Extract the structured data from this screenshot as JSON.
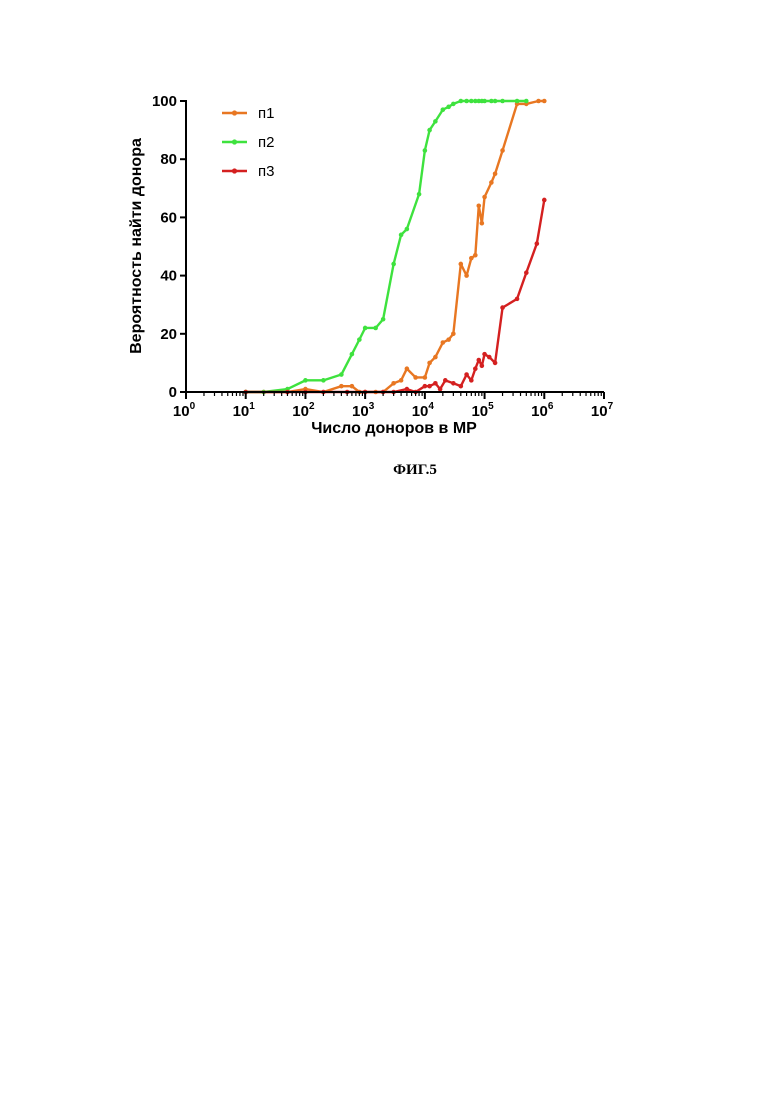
{
  "caption": "ФИГ.5",
  "chart_data": {
    "type": "line",
    "xlabel": "Число доноров в МР",
    "ylabel": "Вероятность найти донора",
    "xscale": "log10",
    "xlim": [
      1,
      10000000
    ],
    "ylim": [
      0,
      100
    ],
    "y_ticks": [
      "0",
      "20",
      "40",
      "60",
      "80",
      "100"
    ],
    "x_ticks": [
      {
        "base": "10",
        "exp": "0"
      },
      {
        "base": "10",
        "exp": "1"
      },
      {
        "base": "10",
        "exp": "2"
      },
      {
        "base": "10",
        "exp": "3"
      },
      {
        "base": "10",
        "exp": "4"
      },
      {
        "base": "10",
        "exp": "5"
      },
      {
        "base": "10",
        "exp": "6"
      },
      {
        "base": "10",
        "exp": "7"
      }
    ],
    "legend_position": "top-left",
    "grid": false,
    "series": [
      {
        "name": "п1",
        "color": "#e87722",
        "points": [
          [
            10,
            0
          ],
          [
            20,
            0
          ],
          [
            50,
            0
          ],
          [
            100,
            1
          ],
          [
            200,
            0
          ],
          [
            400,
            2
          ],
          [
            600,
            2
          ],
          [
            800,
            0
          ],
          [
            1000,
            0
          ],
          [
            1500,
            0
          ],
          [
            2000,
            0
          ],
          [
            3000,
            3
          ],
          [
            4000,
            4
          ],
          [
            5000,
            8
          ],
          [
            7000,
            5
          ],
          [
            10000,
            5
          ],
          [
            12000,
            10
          ],
          [
            15000,
            12
          ],
          [
            20000,
            17
          ],
          [
            25000,
            18
          ],
          [
            30000,
            20
          ],
          [
            40000,
            44
          ],
          [
            50000,
            40
          ],
          [
            60000,
            46
          ],
          [
            70000,
            47
          ],
          [
            80000,
            64
          ],
          [
            90000,
            58
          ],
          [
            100000,
            67
          ],
          [
            130000,
            72
          ],
          [
            150000,
            75
          ],
          [
            200000,
            83
          ],
          [
            350000,
            99
          ],
          [
            500000,
            99
          ],
          [
            800000,
            100
          ],
          [
            1000000,
            100
          ]
        ]
      },
      {
        "name": "п2",
        "color": "#3ee23e",
        "points": [
          [
            10,
            0
          ],
          [
            20,
            0
          ],
          [
            50,
            1
          ],
          [
            100,
            4
          ],
          [
            200,
            4
          ],
          [
            400,
            6
          ],
          [
            600,
            13
          ],
          [
            800,
            18
          ],
          [
            1000,
            22
          ],
          [
            1500,
            22
          ],
          [
            2000,
            25
          ],
          [
            3000,
            44
          ],
          [
            4000,
            54
          ],
          [
            5000,
            56
          ],
          [
            8000,
            68
          ],
          [
            10000,
            83
          ],
          [
            12000,
            90
          ],
          [
            15000,
            93
          ],
          [
            20000,
            97
          ],
          [
            25000,
            98
          ],
          [
            30000,
            99
          ],
          [
            40000,
            100
          ],
          [
            50000,
            100
          ],
          [
            60000,
            100
          ],
          [
            70000,
            100
          ],
          [
            80000,
            100
          ],
          [
            90000,
            100
          ],
          [
            100000,
            100
          ],
          [
            130000,
            100
          ],
          [
            150000,
            100
          ],
          [
            200000,
            100
          ],
          [
            350000,
            100
          ],
          [
            500000,
            100
          ]
        ]
      },
      {
        "name": "п3",
        "color": "#d42020",
        "points": [
          [
            10,
            0
          ],
          [
            50,
            0
          ],
          [
            100,
            0
          ],
          [
            200,
            0
          ],
          [
            500,
            0
          ],
          [
            1000,
            0
          ],
          [
            2000,
            0
          ],
          [
            3000,
            0
          ],
          [
            5000,
            1
          ],
          [
            7000,
            0
          ],
          [
            10000,
            2
          ],
          [
            12000,
            2
          ],
          [
            15000,
            3
          ],
          [
            18000,
            1
          ],
          [
            22000,
            4
          ],
          [
            30000,
            3
          ],
          [
            40000,
            2
          ],
          [
            50000,
            6
          ],
          [
            60000,
            4
          ],
          [
            70000,
            8
          ],
          [
            80000,
            11
          ],
          [
            90000,
            9
          ],
          [
            100000,
            13
          ],
          [
            120000,
            12
          ],
          [
            150000,
            10
          ],
          [
            200000,
            29
          ],
          [
            350000,
            32
          ],
          [
            500000,
            41
          ],
          [
            750000,
            51
          ],
          [
            1000000,
            66
          ]
        ]
      }
    ]
  }
}
